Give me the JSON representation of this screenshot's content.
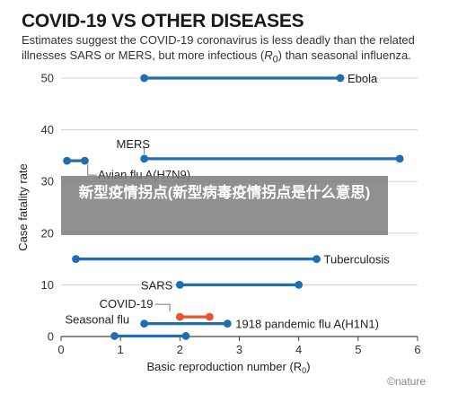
{
  "title": "COVID-19 VS OTHER DISEASES",
  "subtitle_pre": "Estimates suggest the COVID-19 coronavirus is less deadly than the related illnesses SARS or MERS, but more infectious (",
  "subtitle_r": "R",
  "subtitle_r_sub": "0",
  "subtitle_post": ") than seasonal influenza.",
  "banner_text": "新型疫情拐点(新型病毒疫情拐点是什么意思)",
  "credit": "©nature",
  "colors": {
    "default": "#1f6eb4",
    "covid": "#e8552a",
    "axis": "#444444",
    "grid": "#d0d0d0",
    "banner": "#787878"
  },
  "chart_data": {
    "type": "range",
    "xlabel": "Basic reproduction number (R",
    "xlabel_sub": "0",
    "xlabel_close": ")",
    "ylabel": "Case fatality rate",
    "xlim": [
      0,
      6
    ],
    "ylim": [
      0,
      50
    ],
    "xticks": [
      0,
      1,
      2,
      3,
      4,
      5,
      6
    ],
    "yticks": [
      0,
      10,
      20,
      30,
      40,
      50
    ],
    "grid": true,
    "series": [
      {
        "name": "Ebola",
        "x0": 1.4,
        "x1": 4.7,
        "y": 50,
        "color": "#1f6eb4"
      },
      {
        "name": "MERS",
        "x0": 1.4,
        "x1": 5.7,
        "y": 34.4,
        "color": "#1f6eb4"
      },
      {
        "name": "Avian flu A(H7N9)",
        "x0": 0.1,
        "x1": 0.4,
        "y": 34,
        "color": "#1f6eb4"
      },
      {
        "name": "Tuberculosis",
        "x0": 0.25,
        "x1": 4.3,
        "y": 15,
        "color": "#1f6eb4"
      },
      {
        "name": "SARS",
        "x0": 2.0,
        "x1": 4.0,
        "y": 10,
        "color": "#1f6eb4"
      },
      {
        "name": "COVID-19",
        "x0": 2.0,
        "x1": 2.5,
        "y": 3.8,
        "color": "#e8552a"
      },
      {
        "name": "1918 pandemic flu A(H1N1)",
        "x0": 1.4,
        "x1": 2.8,
        "y": 2.5,
        "color": "#1f6eb4"
      },
      {
        "name": "Seasonal flu",
        "x0": 0.9,
        "x1": 2.1,
        "y": 0.1,
        "color": "#1f6eb4"
      }
    ]
  }
}
